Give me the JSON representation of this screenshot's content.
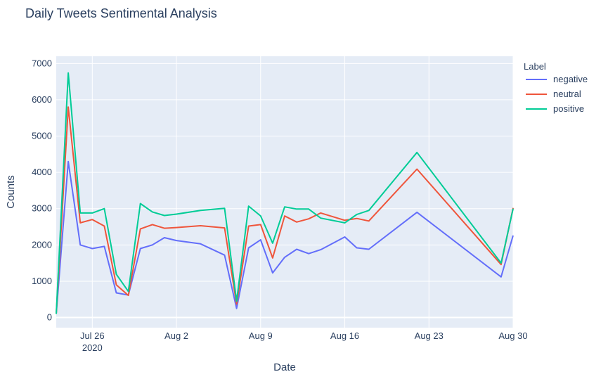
{
  "chart_data": {
    "type": "line",
    "title": "Daily Tweets Sentimental Analysis",
    "xlabel": "Date",
    "ylabel": "Counts",
    "ylim": [
      -280,
      7200
    ],
    "xlim": [
      "2020-07-23",
      "2020-08-30"
    ],
    "grid": true,
    "y_ticks": [
      0,
      1000,
      2000,
      3000,
      4000,
      5000,
      6000,
      7000
    ],
    "y_tick_labels": [
      "0",
      "1000",
      "2000",
      "3000",
      "4000",
      "5000",
      "6000",
      "7000"
    ],
    "x_ticks": [
      {
        "date": "2020-07-26",
        "label": "Jul 26",
        "sublabel": "2020"
      },
      {
        "date": "2020-08-02",
        "label": "Aug 2",
        "sublabel": ""
      },
      {
        "date": "2020-08-09",
        "label": "Aug 9",
        "sublabel": ""
      },
      {
        "date": "2020-08-16",
        "label": "Aug 16",
        "sublabel": ""
      },
      {
        "date": "2020-08-23",
        "label": "Aug 23",
        "sublabel": ""
      },
      {
        "date": "2020-08-30",
        "label": "Aug 30",
        "sublabel": ""
      }
    ],
    "legend_title": "Label",
    "legend_position": "top-right",
    "x": [
      "2020-07-24",
      "2020-07-25",
      "2020-07-26",
      "2020-07-27",
      "2020-07-28",
      "2020-07-29",
      "2020-07-30",
      "2020-07-31",
      "2020-08-01",
      "2020-08-02",
      "2020-08-04",
      "2020-08-06",
      "2020-08-07",
      "2020-08-08",
      "2020-08-09",
      "2020-08-10",
      "2020-08-11",
      "2020-08-12",
      "2020-08-13",
      "2020-08-14",
      "2020-08-16",
      "2020-08-17",
      "2020-08-18",
      "2020-08-22",
      "2020-08-29",
      "2020-08-30"
    ],
    "series": [
      {
        "name": "negative",
        "color": "#636efa",
        "values": [
          4300,
          2000,
          1900,
          1960,
          680,
          620,
          1900,
          2000,
          2200,
          2120,
          2030,
          1720,
          250,
          1920,
          2140,
          1230,
          1660,
          1880,
          1760,
          1870,
          2220,
          1920,
          1880,
          2900,
          1120,
          2260
        ]
      },
      {
        "name": "neutral",
        "color": "#ef553b",
        "values": [
          5800,
          2610,
          2700,
          2520,
          900,
          610,
          2440,
          2560,
          2460,
          2480,
          2530,
          2470,
          370,
          2520,
          2560,
          1640,
          2800,
          2630,
          2720,
          2880,
          2680,
          2730,
          2660,
          4090,
          1460,
          3020
        ]
      },
      {
        "name": "positive",
        "color": "#00cc96",
        "values": [
          6740,
          2880,
          2880,
          3000,
          1190,
          720,
          3140,
          2910,
          2810,
          2850,
          2950,
          3010,
          450,
          3070,
          2800,
          2050,
          3050,
          2990,
          2990,
          2740,
          2610,
          2840,
          2950,
          4550,
          1500,
          3000
        ]
      }
    ],
    "initial_point": {
      "date": "2020-07-23",
      "value": 100
    }
  }
}
